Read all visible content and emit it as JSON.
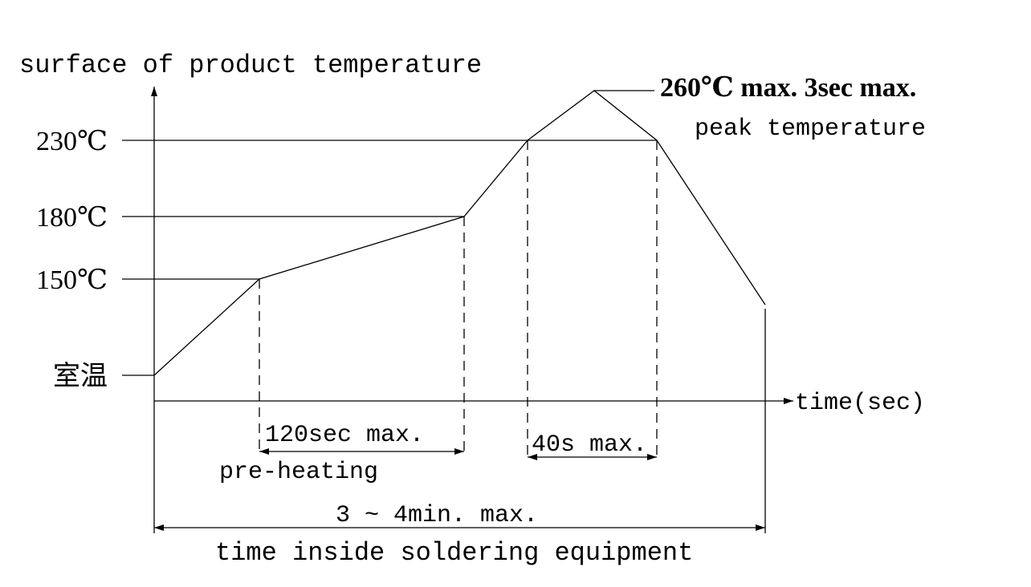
{
  "axes": {
    "y_label": "surface of product temperature",
    "x_label": "time(sec)"
  },
  "levels": [
    "230℃",
    "180℃",
    "150℃",
    "室温"
  ],
  "peak": {
    "label": "260℃ max. 3sec max.",
    "note": "peak temperature"
  },
  "intervals": {
    "preheat": "120sec max.",
    "preheat_name": "pre-heating",
    "reflow": "40s max.",
    "total": "3 ~ 4min. max.",
    "total_name": "time inside soldering equipment"
  }
}
